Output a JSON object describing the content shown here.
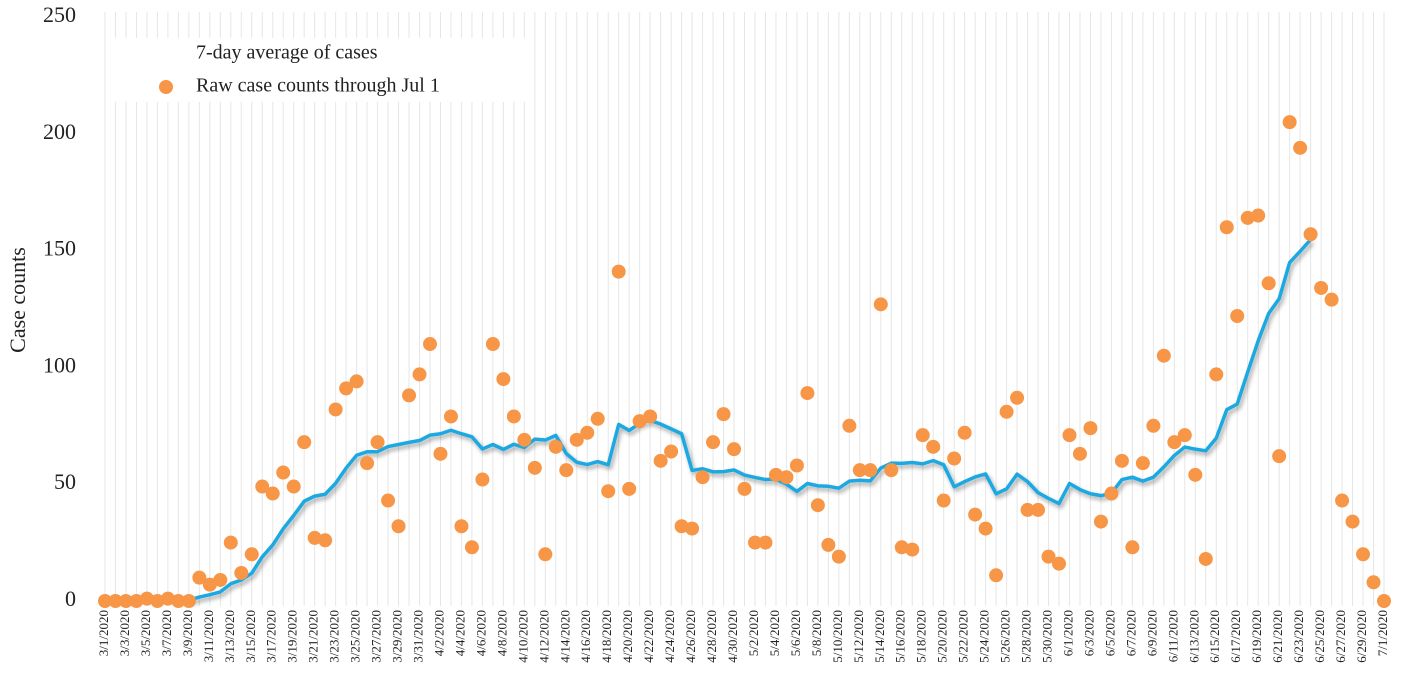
{
  "chart_data": {
    "type": "line",
    "y_label": "Case counts",
    "ylim": [
      0,
      250
    ],
    "yticks": [
      0,
      50,
      100,
      150,
      200,
      250
    ],
    "grid": "x",
    "legend": "upper left",
    "categories": [
      "3/1/2020",
      null,
      "3/3/2020",
      null,
      "3/5/2020",
      null,
      "3/7/2020",
      null,
      "3/9/2020",
      null,
      "3/11/2020",
      null,
      "3/13/2020",
      null,
      "3/15/2020",
      null,
      "3/17/2020",
      null,
      "3/19/2020",
      null,
      "3/21/2020",
      null,
      "3/23/2020",
      null,
      "3/25/2020",
      null,
      "3/27/2020",
      null,
      "3/29/2020",
      null,
      "3/31/2020",
      null,
      "4/2/2020",
      null,
      "4/4/2020",
      null,
      "4/6/2020",
      null,
      "4/8/2020",
      null,
      "4/10/2020",
      null,
      "4/12/2020",
      null,
      "4/14/2020",
      null,
      "4/16/2020",
      null,
      "4/18/2020",
      null,
      "4/20/2020",
      null,
      "4/22/2020",
      null,
      "4/24/2020",
      null,
      "4/26/2020",
      null,
      "4/28/2020",
      null,
      "4/30/2020",
      null,
      "5/2/2020",
      null,
      "5/4/2020",
      null,
      "5/6/2020",
      null,
      "5/8/2020",
      null,
      "5/10/2020",
      null,
      "5/12/2020",
      null,
      "5/14/2020",
      null,
      "5/16/2020",
      null,
      "5/18/2020",
      null,
      "5/20/2020",
      null,
      "5/22/2020",
      null,
      "5/24/2020",
      null,
      "5/26/2020",
      null,
      "5/28/2020",
      null,
      "5/30/2020",
      null,
      "6/1/2020",
      null,
      "6/3/2020",
      null,
      "6/5/2020",
      null,
      "6/7/2020",
      null,
      "6/9/2020",
      null,
      "6/11/2020",
      null,
      "6/13/2020",
      null,
      "6/15/2020",
      null,
      "6/17/2020",
      null,
      "6/19/2020",
      null,
      "6/21/2020",
      null,
      "6/23/2020",
      null,
      "6/25/2020",
      null,
      "6/27/2020",
      null,
      "6/29/2020",
      null,
      "7/1/2020"
    ],
    "series": [
      {
        "name": "7-day average of cases",
        "type": "line",
        "color": "#1ba8e0",
        "values": [
          null,
          null,
          null,
          null,
          null,
          null,
          null,
          null,
          0.3,
          1.7,
          2.7,
          3.9,
          7.4,
          9.0,
          11.9,
          18.9,
          24,
          30.9,
          36.6,
          42.7,
          44.9,
          45.7,
          50.4,
          56.9,
          62.4,
          63.9,
          63.9,
          66.1,
          67,
          67.9,
          68.7,
          71,
          71.6,
          73.1,
          71.6,
          70.3,
          65.1,
          67,
          64.9,
          67.1,
          65.7,
          69.3,
          68.9,
          70.9,
          63.1,
          59.4,
          58.4,
          59.7,
          58.3,
          75.6,
          73,
          76,
          77.4,
          75.7,
          73.7,
          71.6,
          55.9,
          56.6,
          55.3,
          55.4,
          56.1,
          53.9,
          52.9,
          52,
          52.1,
          50,
          46.9,
          50.3,
          49.3,
          49.1,
          48.3,
          51.3,
          51.7,
          51.4,
          56.9,
          59,
          58.9,
          59.3,
          58.7,
          60.1,
          58.3,
          48.9,
          51.1,
          53.1,
          54.4,
          45.9,
          48,
          54.3,
          51.1,
          46.4,
          43.9,
          41.7,
          50.3,
          47.7,
          45.9,
          45.1,
          46.1,
          52,
          53,
          51.3,
          53,
          57.4,
          62.3,
          65.9,
          65,
          64.3,
          69.7,
          81.9,
          84.3,
          98,
          111.4,
          123.1,
          129.4,
          144.9,
          149.7,
          154.7,
          null,
          null,
          null,
          null,
          null,
          null,
          null
        ]
      },
      {
        "name": "Raw case counts through Jul 1",
        "type": "scatter",
        "color": "#f79646",
        "values": [
          0,
          0,
          0,
          0,
          1,
          0,
          1,
          0,
          0,
          10,
          7,
          9,
          25,
          12,
          20,
          49,
          46,
          55,
          49,
          68,
          27,
          26,
          82,
          91,
          94,
          59,
          68,
          43,
          32,
          88,
          97,
          110,
          63,
          79,
          32,
          23,
          52,
          110,
          95,
          79,
          69,
          57,
          20,
          66,
          56,
          69,
          72,
          78,
          47,
          141,
          48,
          77,
          79,
          60,
          64,
          32,
          31,
          53,
          68,
          80,
          65,
          48,
          25,
          25,
          54,
          53,
          58,
          89,
          41,
          24,
          19,
          75,
          56,
          56,
          127,
          56,
          23,
          22,
          71,
          66,
          43,
          61,
          72,
          37,
          31,
          11,
          81,
          87,
          39,
          39,
          19,
          16,
          71,
          63,
          74,
          34,
          46,
          60,
          23,
          59,
          75,
          105,
          68,
          71,
          54,
          18,
          97,
          160,
          122,
          164,
          165,
          136,
          62,
          205,
          194,
          157,
          134,
          129,
          43,
          34,
          20,
          8,
          0
        ]
      }
    ]
  }
}
